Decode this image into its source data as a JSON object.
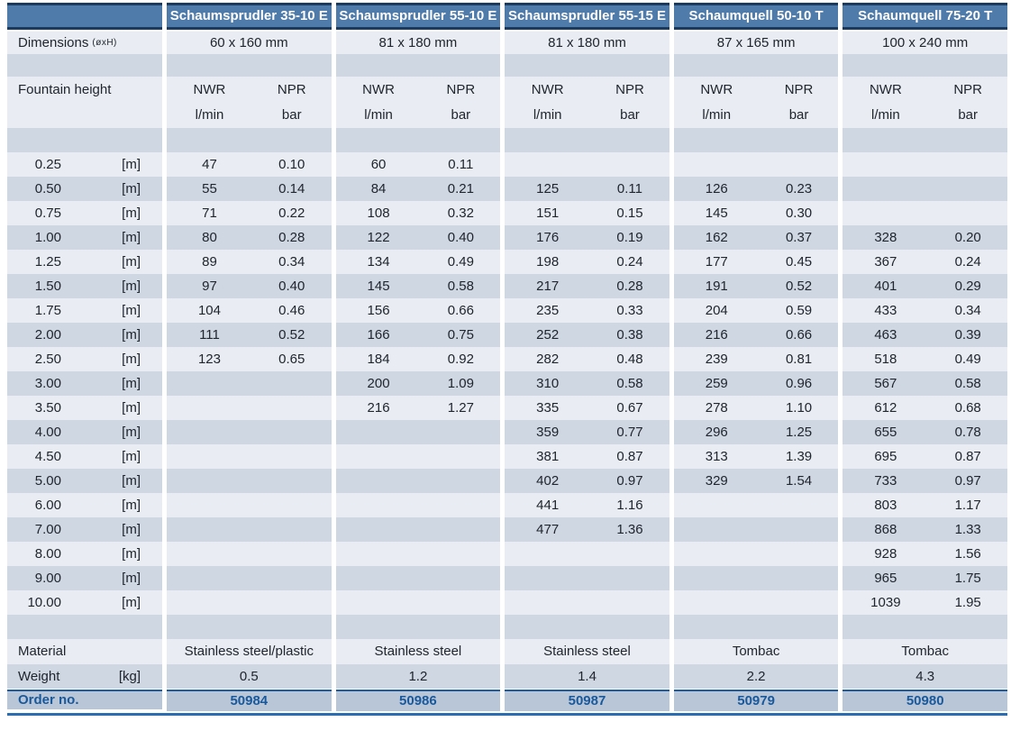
{
  "table": {
    "products": [
      {
        "name": "Schaumsprudler 35-10 E",
        "dimensions": "60 x 160 mm",
        "material": "Stainless steel/plastic",
        "weight": "0.5",
        "order_no": "50984"
      },
      {
        "name": "Schaumsprudler 55-10 E",
        "dimensions": "81 x 180 mm",
        "material": "Stainless steel",
        "weight": "1.2",
        "order_no": "50986"
      },
      {
        "name": "Schaumsprudler 55-15 E",
        "dimensions": "81 x 180 mm",
        "material": "Stainless steel",
        "weight": "1.4",
        "order_no": "50987"
      },
      {
        "name": "Schaumquell 50-10 T",
        "dimensions": "87 x 165 mm",
        "material": "Tombac",
        "weight": "2.2",
        "order_no": "50979"
      },
      {
        "name": "Schaumquell 75-20 T",
        "dimensions": "100 x 240 mm",
        "material": "Tombac",
        "weight": "4.3",
        "order_no": "50980"
      }
    ],
    "labels": {
      "dimensions": "Dimensions",
      "dimensions_sub": "(øxH)",
      "fountain_height": "Fountain height",
      "nwr": "NWR",
      "npr": "NPR",
      "lmin": "l/min",
      "bar": "bar",
      "height_unit": "[m]",
      "material": "Material",
      "weight": "Weight",
      "weight_unit": "[kg]",
      "order_no": "Order no."
    },
    "height_rows": [
      {
        "h": "0.25",
        "v": [
          [
            "47",
            "0.10"
          ],
          [
            "60",
            "0.11"
          ],
          null,
          null,
          null
        ]
      },
      {
        "h": "0.50",
        "v": [
          [
            "55",
            "0.14"
          ],
          [
            "84",
            "0.21"
          ],
          [
            "125",
            "0.11"
          ],
          [
            "126",
            "0.23"
          ],
          null
        ]
      },
      {
        "h": "0.75",
        "v": [
          [
            "71",
            "0.22"
          ],
          [
            "108",
            "0.32"
          ],
          [
            "151",
            "0.15"
          ],
          [
            "145",
            "0.30"
          ],
          null
        ]
      },
      {
        "h": "1.00",
        "v": [
          [
            "80",
            "0.28"
          ],
          [
            "122",
            "0.40"
          ],
          [
            "176",
            "0.19"
          ],
          [
            "162",
            "0.37"
          ],
          [
            "328",
            "0.20"
          ]
        ]
      },
      {
        "h": "1.25",
        "v": [
          [
            "89",
            "0.34"
          ],
          [
            "134",
            "0.49"
          ],
          [
            "198",
            "0.24"
          ],
          [
            "177",
            "0.45"
          ],
          [
            "367",
            "0.24"
          ]
        ]
      },
      {
        "h": "1.50",
        "v": [
          [
            "97",
            "0.40"
          ],
          [
            "145",
            "0.58"
          ],
          [
            "217",
            "0.28"
          ],
          [
            "191",
            "0.52"
          ],
          [
            "401",
            "0.29"
          ]
        ]
      },
      {
        "h": "1.75",
        "v": [
          [
            "104",
            "0.46"
          ],
          [
            "156",
            "0.66"
          ],
          [
            "235",
            "0.33"
          ],
          [
            "204",
            "0.59"
          ],
          [
            "433",
            "0.34"
          ]
        ]
      },
      {
        "h": "2.00",
        "v": [
          [
            "111",
            "0.52"
          ],
          [
            "166",
            "0.75"
          ],
          [
            "252",
            "0.38"
          ],
          [
            "216",
            "0.66"
          ],
          [
            "463",
            "0.39"
          ]
        ]
      },
      {
        "h": "2.50",
        "v": [
          [
            "123",
            "0.65"
          ],
          [
            "184",
            "0.92"
          ],
          [
            "282",
            "0.48"
          ],
          [
            "239",
            "0.81"
          ],
          [
            "518",
            "0.49"
          ]
        ]
      },
      {
        "h": "3.00",
        "v": [
          null,
          [
            "200",
            "1.09"
          ],
          [
            "310",
            "0.58"
          ],
          [
            "259",
            "0.96"
          ],
          [
            "567",
            "0.58"
          ]
        ]
      },
      {
        "h": "3.50",
        "v": [
          null,
          [
            "216",
            "1.27"
          ],
          [
            "335",
            "0.67"
          ],
          [
            "278",
            "1.10"
          ],
          [
            "612",
            "0.68"
          ]
        ]
      },
      {
        "h": "4.00",
        "v": [
          null,
          null,
          [
            "359",
            "0.77"
          ],
          [
            "296",
            "1.25"
          ],
          [
            "655",
            "0.78"
          ]
        ]
      },
      {
        "h": "4.50",
        "v": [
          null,
          null,
          [
            "381",
            "0.87"
          ],
          [
            "313",
            "1.39"
          ],
          [
            "695",
            "0.87"
          ]
        ]
      },
      {
        "h": "5.00",
        "v": [
          null,
          null,
          [
            "402",
            "0.97"
          ],
          [
            "329",
            "1.54"
          ],
          [
            "733",
            "0.97"
          ]
        ]
      },
      {
        "h": "6.00",
        "v": [
          null,
          null,
          [
            "441",
            "1.16"
          ],
          null,
          [
            "803",
            "1.17"
          ]
        ]
      },
      {
        "h": "7.00",
        "v": [
          null,
          null,
          [
            "477",
            "1.36"
          ],
          null,
          [
            "868",
            "1.33"
          ]
        ]
      },
      {
        "h": "8.00",
        "v": [
          null,
          null,
          null,
          null,
          [
            "928",
            "1.56"
          ]
        ]
      },
      {
        "h": "9.00",
        "v": [
          null,
          null,
          null,
          null,
          [
            "965",
            "1.75"
          ]
        ]
      },
      {
        "h": "10.00",
        "v": [
          null,
          null,
          null,
          null,
          [
            "1039",
            "1.95"
          ]
        ]
      }
    ],
    "colors": {
      "header_blue": "#4e7ba9",
      "border_navy": "#1b3a5f",
      "row_light": "#e9edf3",
      "row_dark": "#cfd7e3",
      "order_bg": "#b9c6d8",
      "order_text": "#19599b",
      "bottom_line": "#2c6cb0",
      "body_text": "#20252e"
    }
  }
}
